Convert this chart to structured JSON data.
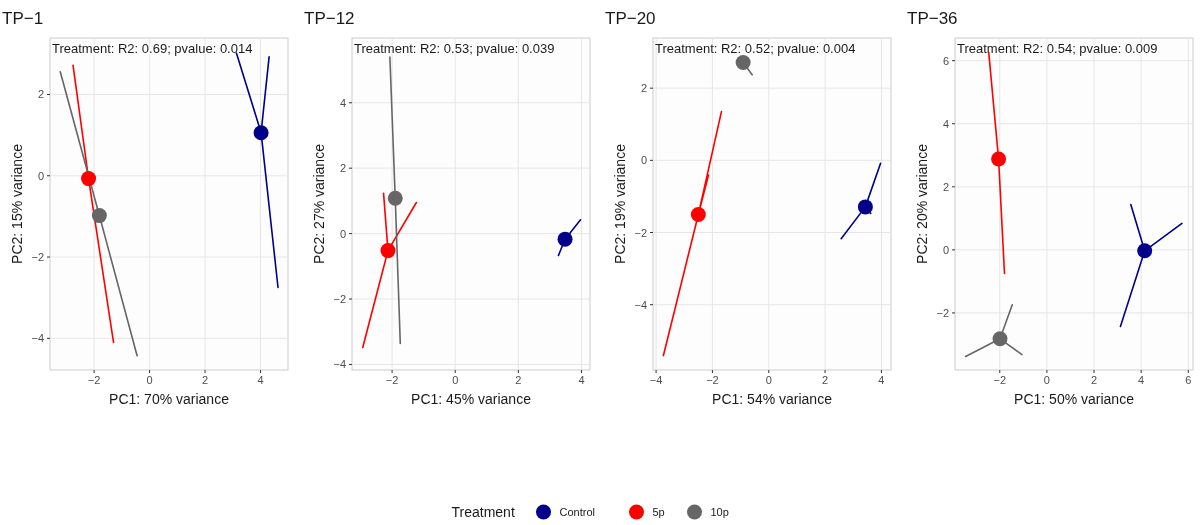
{
  "chart_data": [
    {
      "type": "scatter",
      "title": "TP−1",
      "xlabel": "PC1: 70% variance",
      "ylabel": "PC2: 15% variance",
      "legend_title": "Treatment",
      "legend": "bottom",
      "grid": true,
      "annotations": [
        "Treatment: R2: 0.69; pvalue: 0.014"
      ],
      "xlim": [
        -3.59,
        4.99
      ],
      "ylim": [
        -4.78,
        3.39
      ],
      "xticks": [
        -2,
        0,
        2,
        4
      ],
      "yticks": [
        -4,
        -2,
        0,
        2
      ],
      "series": [
        {
          "name": "Control",
          "color": "#00008b",
          "marker": "circle",
          "x": [
            4.02
          ],
          "values": [
            1.06
          ]
        },
        {
          "name": "5p",
          "color": "#ff0000",
          "marker": "circle",
          "x": [
            -2.2
          ],
          "values": [
            -0.07
          ]
        },
        {
          "name": "10p",
          "color": "#666666",
          "marker": "circle",
          "x": [
            -1.81
          ],
          "values": [
            -0.98
          ]
        },
        {
          "type": "line",
          "color": "#00008b",
          "x": [
            3.13,
            4.02,
            4.31,
            4.02,
            4.63
          ],
          "values": [
            3.02,
            1.06,
            2.93,
            1.06,
            -2.75
          ]
        },
        {
          "type": "line",
          "color": "#ff0000",
          "x": [
            -2.76,
            -2.2,
            -1.3
          ],
          "values": [
            2.72,
            -0.07,
            -4.1
          ]
        },
        {
          "type": "line",
          "color": "#666666",
          "x": [
            -3.22,
            -1.81,
            -0.45
          ],
          "values": [
            2.56,
            -0.98,
            -4.43
          ]
        }
      ]
    },
    {
      "type": "scatter",
      "title": "TP−12",
      "xlabel": "PC1: 45% variance",
      "ylabel": "PC2: 27% variance",
      "grid": true,
      "annotations": [
        "Treatment: R2: 0.53; pvalue: 0.039"
      ],
      "xlim": [
        -3.27,
        4.27
      ],
      "ylim": [
        -4.17,
        5.98
      ],
      "xticks": [
        -2,
        0,
        2,
        4
      ],
      "yticks": [
        -4,
        -2,
        0,
        2,
        4
      ],
      "series": [
        {
          "color": "#00008b",
          "marker": "circle",
          "x": [
            3.48
          ],
          "values": [
            -0.17
          ]
        },
        {
          "color": "#ff0000",
          "marker": "circle",
          "x": [
            -2.13
          ],
          "values": [
            -0.52
          ]
        },
        {
          "color": "#666666",
          "marker": "circle",
          "x": [
            -1.9
          ],
          "values": [
            1.08
          ]
        },
        {
          "type": "line",
          "color": "#00008b",
          "x": [
            3.97,
            3.48,
            3.27
          ],
          "values": [
            0.42,
            -0.17,
            -0.67
          ]
        },
        {
          "type": "line",
          "color": "#ff0000",
          "x": [
            -2.27,
            -2.13,
            -1.23,
            -2.13,
            -2.93
          ],
          "values": [
            1.23,
            -0.52,
            0.95,
            -0.52,
            -3.48
          ]
        },
        {
          "type": "line",
          "color": "#666666",
          "x": [
            -2.07,
            -1.9,
            -1.74
          ],
          "values": [
            5.4,
            1.08,
            -3.36
          ]
        }
      ]
    },
    {
      "type": "scatter",
      "title": "TP−20",
      "xlabel": "PC1: 54% variance",
      "ylabel": "PC2: 19% variance",
      "grid": true,
      "annotations": [
        "Treatment: R2: 0.52; pvalue: 0.004"
      ],
      "xlim": [
        -4.11,
        4.34
      ],
      "ylim": [
        -5.81,
        3.39
      ],
      "xticks": [
        -4,
        -2,
        0,
        2,
        4
      ],
      "yticks": [
        -4,
        -2,
        0,
        2
      ],
      "series": [
        {
          "color": "#00008b",
          "marker": "circle",
          "x": [
            3.43
          ],
          "values": [
            -1.29
          ]
        },
        {
          "color": "#ff0000",
          "marker": "circle",
          "x": [
            -2.5
          ],
          "values": [
            -1.5
          ]
        },
        {
          "color": "#666666",
          "marker": "circle",
          "x": [
            -0.91
          ],
          "values": [
            2.71
          ]
        },
        {
          "type": "line",
          "color": "#00008b",
          "x": [
            3.97,
            3.43,
            2.57,
            3.43,
            3.62
          ],
          "values": [
            -0.08,
            -1.29,
            -2.17,
            -1.29,
            -1.47
          ]
        },
        {
          "type": "line",
          "color": "#ff0000",
          "x": [
            -1.68,
            -2.5,
            -2.14,
            -2.5,
            -3.74
          ],
          "values": [
            1.35,
            -1.5,
            -0.41,
            -1.5,
            -5.41
          ]
        },
        {
          "type": "line",
          "color": "#666666",
          "x": [
            -0.91,
            -0.59
          ],
          "values": [
            2.71,
            2.37
          ]
        }
      ]
    },
    {
      "type": "scatter",
      "title": "TP−36",
      "xlabel": "PC1: 50% variance",
      "ylabel": "PC2: 20% variance",
      "grid": true,
      "annotations": [
        "Treatment: R2: 0.54; pvalue: 0.009"
      ],
      "xlim": [
        -3.9,
        6.2
      ],
      "ylim": [
        -3.81,
        6.72
      ],
      "xticks": [
        -2,
        0,
        2,
        4,
        6
      ],
      "yticks": [
        -2,
        0,
        2,
        4,
        6
      ],
      "series": [
        {
          "color": "#00008b",
          "marker": "circle",
          "x": [
            4.15
          ],
          "values": [
            -0.03
          ]
        },
        {
          "color": "#ff0000",
          "marker": "circle",
          "x": [
            -2.05
          ],
          "values": [
            2.88
          ]
        },
        {
          "color": "#666666",
          "marker": "circle",
          "x": [
            -1.99
          ],
          "values": [
            -2.82
          ]
        },
        {
          "type": "line",
          "color": "#00008b",
          "x": [
            3.56,
            4.15,
            5.73,
            4.15,
            3.12
          ],
          "values": [
            1.44,
            -0.03,
            0.84,
            -0.03,
            -2.43
          ]
        },
        {
          "type": "line",
          "color": "#ff0000",
          "x": [
            -2.47,
            -2.05,
            -1.8
          ],
          "values": [
            6.27,
            2.88,
            -0.75
          ]
        },
        {
          "type": "line",
          "color": "#666666",
          "x": [
            -1.47,
            -1.99,
            -1.06,
            -1.99,
            -3.45
          ],
          "values": [
            -1.74,
            -2.82,
            -3.32,
            -2.82,
            -3.38
          ]
        }
      ]
    }
  ]
}
